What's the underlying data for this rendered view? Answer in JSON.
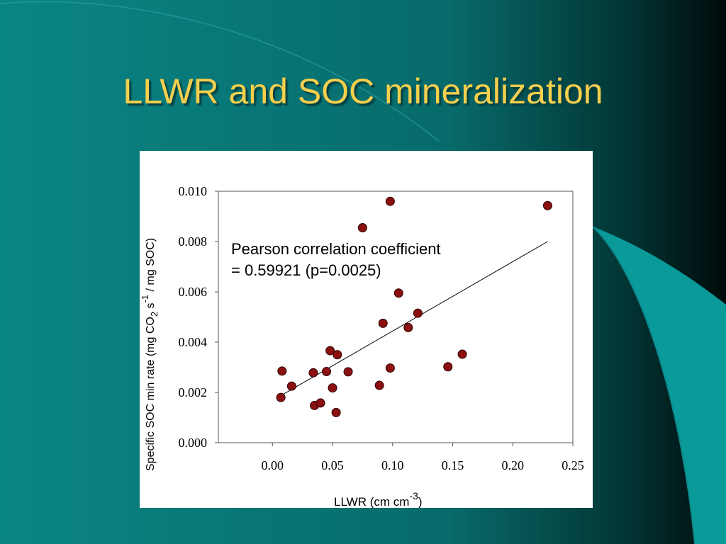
{
  "slide": {
    "title": "LLWR and SOC mineralization",
    "colors": {
      "background": "#0b7f7f",
      "title": "#f5cf4d",
      "panel": "#ffffff",
      "marker": "#8b0f0f"
    }
  },
  "chart_data": {
    "type": "scatter",
    "title": "",
    "xlabel": {
      "text": "LLWR (cm cm",
      "superscript": "-3",
      "suffix": ")"
    },
    "ylabel": {
      "part1": "Specific SOC min rate (mg CO",
      "sub": "2",
      "part2": " s",
      "sup": "-1",
      "part3": " / mg SOC)"
    },
    "xlim": [
      -0.045,
      0.25
    ],
    "ylim": [
      0,
      0.01
    ],
    "x_ticks": [
      "0.00",
      "0.05",
      "0.10",
      "0.15",
      "0.20",
      "0.25"
    ],
    "x_tick_values": [
      0,
      0.05,
      0.1,
      0.15,
      0.2,
      0.25
    ],
    "y_ticks": [
      "0.000",
      "0.002",
      "0.004",
      "0.006",
      "0.008",
      "0.010"
    ],
    "y_tick_values": [
      0,
      0.002,
      0.004,
      0.006,
      0.008,
      0.01
    ],
    "grid": false,
    "annotation": {
      "line1": "Pearson correlation coefficient",
      "line2": "=  0.59921 (p=0.0025)"
    },
    "trendline": {
      "x1": 0.008,
      "y1": 0.0019,
      "x2": 0.229,
      "y2": 0.008
    },
    "points": [
      {
        "x": 0.007,
        "y": 0.0018
      },
      {
        "x": 0.008,
        "y": 0.00285
      },
      {
        "x": 0.016,
        "y": 0.00225
      },
      {
        "x": 0.034,
        "y": 0.00278
      },
      {
        "x": 0.035,
        "y": 0.00148
      },
      {
        "x": 0.04,
        "y": 0.00158
      },
      {
        "x": 0.045,
        "y": 0.00283
      },
      {
        "x": 0.048,
        "y": 0.00366
      },
      {
        "x": 0.05,
        "y": 0.00218
      },
      {
        "x": 0.053,
        "y": 0.0012
      },
      {
        "x": 0.054,
        "y": 0.0035
      },
      {
        "x": 0.063,
        "y": 0.00282
      },
      {
        "x": 0.075,
        "y": 0.00855
      },
      {
        "x": 0.089,
        "y": 0.00228
      },
      {
        "x": 0.092,
        "y": 0.00475
      },
      {
        "x": 0.098,
        "y": 0.00297
      },
      {
        "x": 0.098,
        "y": 0.0096
      },
      {
        "x": 0.105,
        "y": 0.00595
      },
      {
        "x": 0.113,
        "y": 0.00458
      },
      {
        "x": 0.121,
        "y": 0.00515
      },
      {
        "x": 0.146,
        "y": 0.00302
      },
      {
        "x": 0.158,
        "y": 0.00352
      },
      {
        "x": 0.229,
        "y": 0.00943
      }
    ]
  }
}
